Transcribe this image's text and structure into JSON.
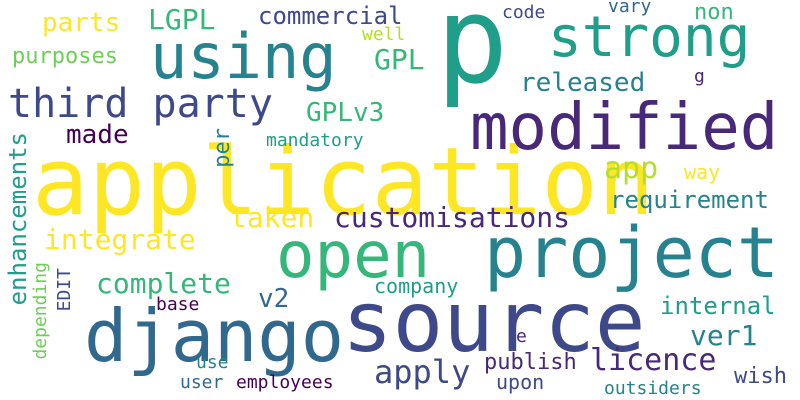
{
  "colors": {
    "background": "#ffffff",
    "yellow": "#fde725",
    "lime": "#b5de2b",
    "green": "#6ece58",
    "teal_green": "#35b779",
    "teal": "#1f9e89",
    "blue_teal": "#26828e",
    "blue": "#31688e",
    "indigo": "#3e4989",
    "violet": "#482878",
    "dark": "#440154"
  },
  "words": {
    "p": "p",
    "application": "application",
    "source": "source",
    "django": "django",
    "project": "project",
    "open": "open",
    "modified": "modified",
    "strong": "strong",
    "using": "using",
    "third_party": "third party",
    "customisations": "customisations",
    "parts": "parts",
    "LGPL": "LGPL",
    "commercial": "commercial",
    "code": "code",
    "vary": "vary",
    "non": "non",
    "well": "well",
    "GPL": "GPL",
    "purposes": "purposes",
    "released": "released",
    "g": "g",
    "GPLv3": "GPLv3",
    "made": "made",
    "per": "per",
    "mandatory": "mandatory",
    "enhancements": "enhancements",
    "app": "app",
    "way": "way",
    "taken": "taken",
    "requirement": "requirement",
    "integrate": "integrate",
    "complete": "complete",
    "v2": "v2",
    "company": "company",
    "internal": "internal",
    "ver1": "ver1",
    "EDIT": "EDIT",
    "depending": "depending",
    "base": "base",
    "e": "e",
    "apply": "apply",
    "licence": "licence",
    "publish": "publish",
    "use": "use",
    "upon": "upon",
    "user": "user",
    "employees": "employees",
    "outsiders": "outsiders",
    "wish": "wish"
  }
}
